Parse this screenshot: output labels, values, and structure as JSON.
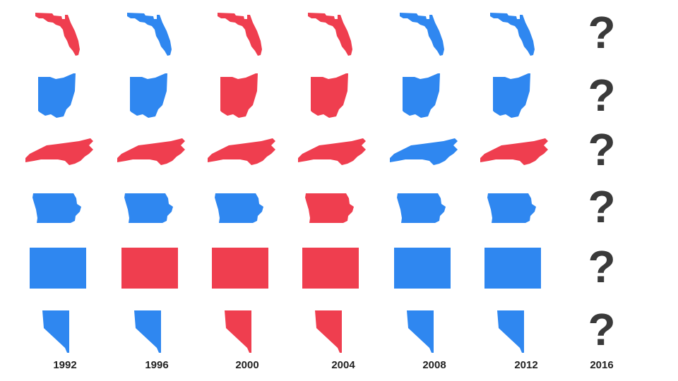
{
  "colors": {
    "rep": "#ef3e4f",
    "dem": "#2f87f0",
    "unknown": "#3a3a3a"
  },
  "years": [
    "1992",
    "1996",
    "2000",
    "2004",
    "2008",
    "2012",
    "2016"
  ],
  "unknown_symbol": "?",
  "states": [
    {
      "shape": "florida-icon",
      "results": [
        "rep",
        "dem",
        "rep",
        "rep",
        "dem",
        "dem",
        null
      ]
    },
    {
      "shape": "ohio-icon",
      "results": [
        "dem",
        "dem",
        "rep",
        "rep",
        "dem",
        "dem",
        null
      ]
    },
    {
      "shape": "north-carolina-icon",
      "results": [
        "rep",
        "rep",
        "rep",
        "rep",
        "dem",
        "rep",
        null
      ]
    },
    {
      "shape": "iowa-icon",
      "results": [
        "dem",
        "dem",
        "dem",
        "rep",
        "dem",
        "dem",
        null
      ]
    },
    {
      "shape": "colorado-icon",
      "results": [
        "dem",
        "rep",
        "rep",
        "rep",
        "dem",
        "dem",
        null
      ]
    },
    {
      "shape": "nevada-icon",
      "results": [
        "dem",
        "dem",
        "rep",
        "rep",
        "dem",
        "dem",
        null
      ]
    }
  ]
}
